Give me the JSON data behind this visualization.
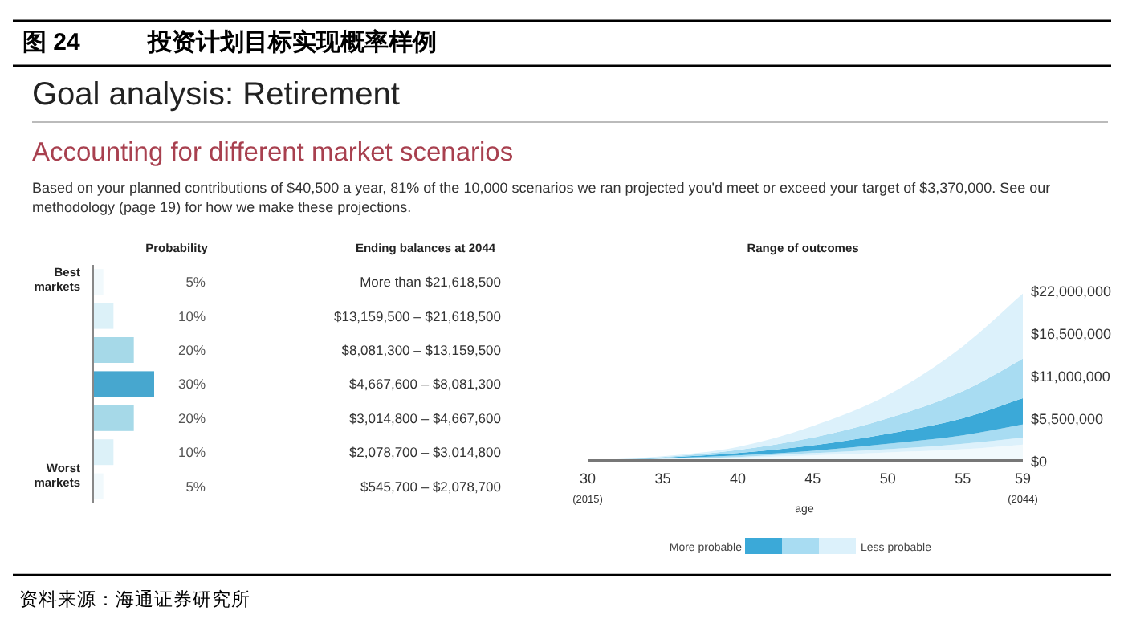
{
  "chart_data": [
    {
      "type": "bar",
      "orientation": "horizontal",
      "title": "图 24　投资计划目标实现概率样例",
      "subtitle": "Goal analysis: Retirement",
      "xlabel": "Probability",
      "ylabel": "Ending balances at 2044",
      "categories": [
        "More than $21,618,500",
        "$13,159,500 – $21,618,500",
        "$8,081,300 – $13,159,500",
        "$4,667,600 – $8,081,300",
        "$3,014,800 – $4,667,600",
        "$2,078,700 – $3,014,800",
        "$545,700 – $2,078,700"
      ],
      "values": [
        5,
        10,
        20,
        30,
        20,
        10,
        5
      ],
      "value_labels": [
        "5%",
        "10%",
        "20%",
        "30%",
        "20%",
        "10%",
        "5%"
      ],
      "colors": [
        "#f1f9fc",
        "#dcf1f8",
        "#a6d9e8",
        "#47a7cf",
        "#a6d9e8",
        "#dcf1f8",
        "#f1f9fc"
      ],
      "xlim": [
        0,
        30
      ],
      "annotations": [
        "Accounting for different market scenarios",
        "Based on your planned contributions of $40,500 a year, 81% of the 10,000 scenarios we ran projected you'd meet or exceed your target of $3,370,000. See our methodology (page 19) for how we make these projections.",
        "Best markets",
        "Worst markets",
        "资料来源：海通证券研究所"
      ]
    },
    {
      "type": "area",
      "title": "Range of outcomes",
      "xlabel": "age",
      "x": [
        30,
        35,
        40,
        45,
        50,
        55,
        59
      ],
      "series": [
        {
          "color": "#f1f9fc",
          "values": [
            0,
            200000,
            400000,
            700000,
            1100000,
            1500000,
            2100000
          ]
        },
        {
          "color": "#dcf1fb",
          "values": [
            0,
            100000,
            100000,
            300000,
            400000,
            700000,
            900000
          ]
        },
        {
          "color": "#a8dcf2",
          "values": [
            0,
            0,
            200000,
            300000,
            700000,
            1100000,
            1700000
          ]
        },
        {
          "color": "#3ba9d8",
          "values": [
            0,
            100000,
            300000,
            700000,
            1300000,
            2200000,
            3400000
          ]
        },
        {
          "color": "#a8dcf2",
          "values": [
            0,
            100000,
            400000,
            1000000,
            2000000,
            3500000,
            5100000
          ]
        },
        {
          "color": "#dcf1fb",
          "values": [
            0,
            100000,
            400000,
            1500000,
            3000000,
            5800000,
            8400000
          ]
        }
      ],
      "stacked": true,
      "xlim": [
        30,
        59
      ],
      "ylim": [
        0,
        22000000
      ],
      "xticks": [
        {
          "value": 30,
          "label": "30\n(2015)"
        },
        35,
        40,
        45,
        50,
        55,
        {
          "value": 59,
          "label": "59\n(2044)"
        }
      ],
      "yticks": [
        {
          "value": 0,
          "label": "$0"
        },
        {
          "value": 5500000,
          "label": "$5,500,000"
        },
        {
          "value": 11000000,
          "label": "$11,000,000"
        },
        {
          "value": 16500000,
          "label": "$16,500,000"
        },
        {
          "value": 22000000,
          "label": "$22,000,000"
        }
      ],
      "grid": false,
      "annotations": [
        "More probable",
        "Less probable"
      ]
    }
  ]
}
